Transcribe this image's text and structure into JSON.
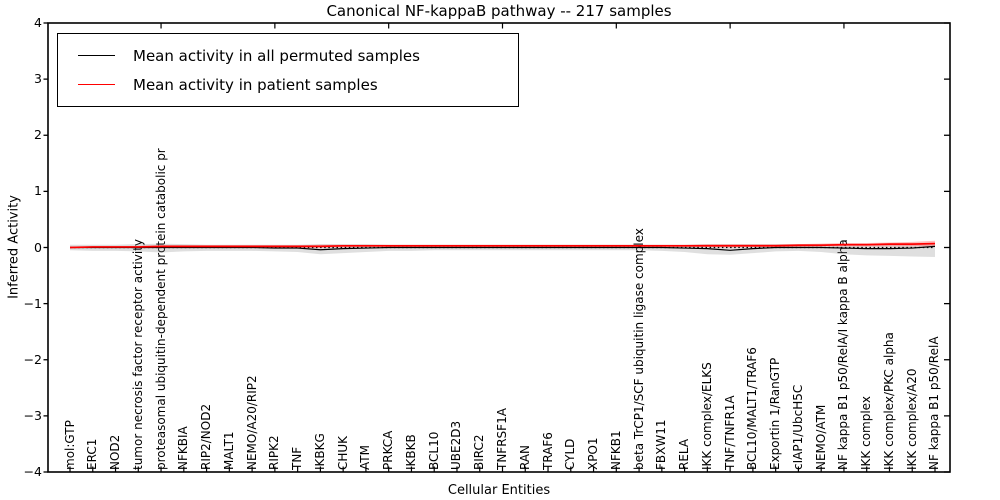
{
  "chart_data": {
    "type": "line",
    "title": "Canonical NF-kappaB pathway -- 217 samples",
    "xlabel": "Cellular Entities",
    "ylabel": "Inferred Activity",
    "ylim": [
      -4,
      4
    ],
    "yticks": [
      4,
      3,
      2,
      1,
      0,
      -1,
      -2,
      -3,
      -4
    ],
    "ytick_labels": [
      "4",
      "3",
      "2",
      "1",
      "0",
      "−1",
      "−2",
      "−3",
      "−4"
    ],
    "grid": false,
    "legend_position": "upper left",
    "top_tick_indices": [
      4,
      9,
      14,
      19,
      24,
      29,
      34
    ],
    "categories": [
      "mol:GTP",
      "ERC1",
      "NOD2",
      "tumor necrosis factor receptor activity",
      "proteasomal ubiquitin-dependent protein catabolic pr",
      "NFKBIA",
      "RIP2/NOD2",
      "MALT1",
      "NEMO/A20/RIP2",
      "RIPK2",
      "TNF",
      "IKBKG",
      "CHUK",
      "ATM",
      "PRKCA",
      "IKBKB",
      "BCL10",
      "UBE2D3",
      "BIRC2",
      "TNFRSF1A",
      "RAN",
      "TRAF6",
      "CYLD",
      "XPO1",
      "NFKB1",
      "beta TrCP1/SCF ubiquitin ligase complex",
      "FBXW11",
      "RELA",
      "IKK complex/ELKS",
      "TNF/TNFR1A",
      "BCL10/MALT1/TRAF6",
      "Exportin 1/RanGTP",
      "cIAP1/UbcH5C",
      "NEMO/ATM",
      "NF kappa B1 p50/RelA/I kappa B alpha",
      "IKK complex",
      "IKK complex/PKC alpha",
      "IKK complex/A20",
      "NF kappa B1 p50/RelA"
    ],
    "series": [
      {
        "name": "Mean activity in all permuted samples",
        "color": "#000000",
        "values": [
          0,
          0,
          0,
          0,
          0,
          0,
          0,
          0,
          0,
          -0.01,
          -0.01,
          -0.04,
          -0.02,
          -0.01,
          0,
          0,
          0,
          0,
          0,
          0,
          0,
          0,
          0,
          0,
          0,
          0,
          0,
          -0.01,
          -0.02,
          -0.05,
          -0.02,
          0,
          0,
          0,
          -0.01,
          -0.02,
          -0.02,
          -0.01,
          0.02
        ]
      },
      {
        "name": "Mean activity in patient samples",
        "color": "#ff0000",
        "values": [
          0,
          0.01,
          0.01,
          0.01,
          0.02,
          0.02,
          0.02,
          0.02,
          0.02,
          0.02,
          0.02,
          0.02,
          0.03,
          0.03,
          0.03,
          0.03,
          0.03,
          0.03,
          0.03,
          0.03,
          0.03,
          0.03,
          0.03,
          0.03,
          0.03,
          0.03,
          0.03,
          0.03,
          0.03,
          0.03,
          0.03,
          0.03,
          0.04,
          0.04,
          0.05,
          0.05,
          0.06,
          0.06,
          0.07
        ]
      }
    ],
    "bands": [
      {
        "name": "permuted-band",
        "color": "rgba(128,128,128,0.25)",
        "upper": [
          0.05,
          0.05,
          0.05,
          0.06,
          0.07,
          0.06,
          0.05,
          0.05,
          0.05,
          0.05,
          0.05,
          0.06,
          0.06,
          0.06,
          0.05,
          0.05,
          0.05,
          0.05,
          0.05,
          0.05,
          0.05,
          0.05,
          0.05,
          0.05,
          0.05,
          0.05,
          0.05,
          0.05,
          0.06,
          0.06,
          0.06,
          0.06,
          0.06,
          0.06,
          0.06,
          0.06,
          0.06,
          0.07,
          0.08
        ],
        "lower": [
          -0.05,
          -0.06,
          -0.06,
          -0.07,
          -0.09,
          -0.07,
          -0.06,
          -0.06,
          -0.06,
          -0.07,
          -0.08,
          -0.12,
          -0.1,
          -0.08,
          -0.06,
          -0.06,
          -0.05,
          -0.05,
          -0.05,
          -0.05,
          -0.05,
          -0.05,
          -0.05,
          -0.05,
          -0.05,
          -0.05,
          -0.06,
          -0.08,
          -0.12,
          -0.13,
          -0.1,
          -0.07,
          -0.06,
          -0.08,
          -0.12,
          -0.14,
          -0.15,
          -0.16,
          -0.17
        ]
      },
      {
        "name": "patient-band",
        "color": "rgba(255,0,0,0.25)",
        "upper": [
          0.01,
          0.02,
          0.02,
          0.03,
          0.04,
          0.04,
          0.04,
          0.04,
          0.04,
          0.04,
          0.04,
          0.05,
          0.05,
          0.05,
          0.05,
          0.05,
          0.05,
          0.05,
          0.05,
          0.05,
          0.05,
          0.05,
          0.05,
          0.05,
          0.05,
          0.05,
          0.05,
          0.05,
          0.06,
          0.06,
          0.06,
          0.06,
          0.06,
          0.07,
          0.08,
          0.08,
          0.09,
          0.1,
          0.12
        ],
        "lower": [
          -0.01,
          -0.01,
          -0.01,
          -0.01,
          0,
          0,
          0,
          0,
          0,
          0,
          0,
          0,
          0,
          0.01,
          0.01,
          0.01,
          0.01,
          0.01,
          0.01,
          0.01,
          0.01,
          0.01,
          0.01,
          0.01,
          0.01,
          0.01,
          0.01,
          0.01,
          0.01,
          0,
          0.01,
          0.01,
          0.01,
          0.02,
          0.02,
          0.02,
          0.02,
          0.02,
          0.02
        ]
      }
    ],
    "zero_line": {
      "style": "dotted",
      "color": "#000000",
      "y": 0
    }
  }
}
